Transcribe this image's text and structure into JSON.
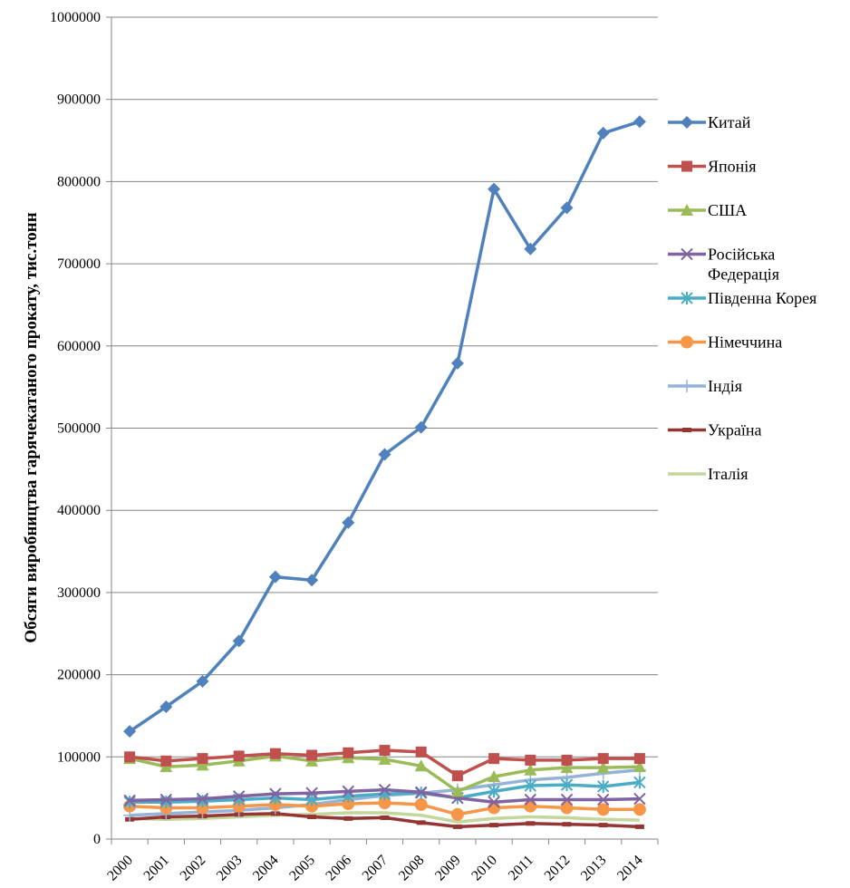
{
  "chart_data": {
    "type": "line",
    "title": "",
    "xlabel": "",
    "ylabel": "Обсяги виробництва гарячекатаного прокату, тис.тонн",
    "ylim": [
      0,
      1000000
    ],
    "yticks": [
      "0",
      "100000",
      "200000",
      "300000",
      "400000",
      "500000",
      "600000",
      "700000",
      "800000",
      "900000",
      "1000000"
    ],
    "grid": "horizontal",
    "legend_position": "right",
    "categories": [
      "2000",
      "2001",
      "2002",
      "2003",
      "2004",
      "2005",
      "2006",
      "2007",
      "2008",
      "2009",
      "2010",
      "2011",
      "2012",
      "2013",
      "2014"
    ],
    "series": [
      {
        "name": "Китай",
        "color": "#4f81bd",
        "marker": "diamond",
        "values": [
          131000,
          161000,
          192000,
          241000,
          319000,
          315000,
          385000,
          468000,
          501000,
          579000,
          791000,
          718000,
          768000,
          859000,
          873000
        ]
      },
      {
        "name": "Японія",
        "color": "#c0504d",
        "marker": "square",
        "values": [
          100000,
          95000,
          98000,
          101000,
          104000,
          102000,
          105000,
          108000,
          106000,
          77000,
          98000,
          96000,
          96000,
          98000,
          98000
        ]
      },
      {
        "name": "США",
        "color": "#9bbb59",
        "marker": "triangle",
        "values": [
          98000,
          88000,
          90000,
          95000,
          101000,
          95000,
          99000,
          97000,
          89000,
          58000,
          76000,
          84000,
          87000,
          87000,
          88000
        ]
      },
      {
        "name": "Російська Федерація",
        "color": "#8064a2",
        "marker": "x",
        "values": [
          47000,
          48000,
          49000,
          52000,
          55000,
          56000,
          58000,
          60000,
          57000,
          50000,
          45000,
          48000,
          48000,
          48000,
          49000
        ]
      },
      {
        "name": "Південна Корея",
        "color": "#4bacc6",
        "marker": "star",
        "values": [
          45000,
          45000,
          46000,
          48000,
          50000,
          48000,
          52000,
          55000,
          56000,
          50000,
          58000,
          65000,
          66000,
          64000,
          69000
        ]
      },
      {
        "name": "Німеччина",
        "color": "#f79646",
        "marker": "circle",
        "values": [
          40000,
          38000,
          38000,
          40000,
          42000,
          40000,
          43000,
          44000,
          42000,
          30000,
          38000,
          40000,
          38000,
          36000,
          36000
        ]
      },
      {
        "name": "Індія",
        "color": "#95b3d7",
        "marker": "plus",
        "values": [
          29000,
          31000,
          33000,
          35000,
          38000,
          42000,
          48000,
          53000,
          56000,
          60000,
          66000,
          72000,
          75000,
          80000,
          84000
        ]
      },
      {
        "name": "Україна",
        "color": "#943634",
        "marker": "dash",
        "values": [
          24000,
          27000,
          28000,
          30000,
          31000,
          27000,
          25000,
          26000,
          20000,
          15000,
          17000,
          19000,
          18000,
          17000,
          15000
        ]
      },
      {
        "name": "Італія",
        "color": "#c3d69b",
        "marker": "none",
        "values": [
          25000,
          24000,
          25000,
          27000,
          29000,
          30000,
          32000,
          32000,
          29000,
          21000,
          25000,
          27000,
          26000,
          24000,
          23000
        ]
      }
    ]
  }
}
